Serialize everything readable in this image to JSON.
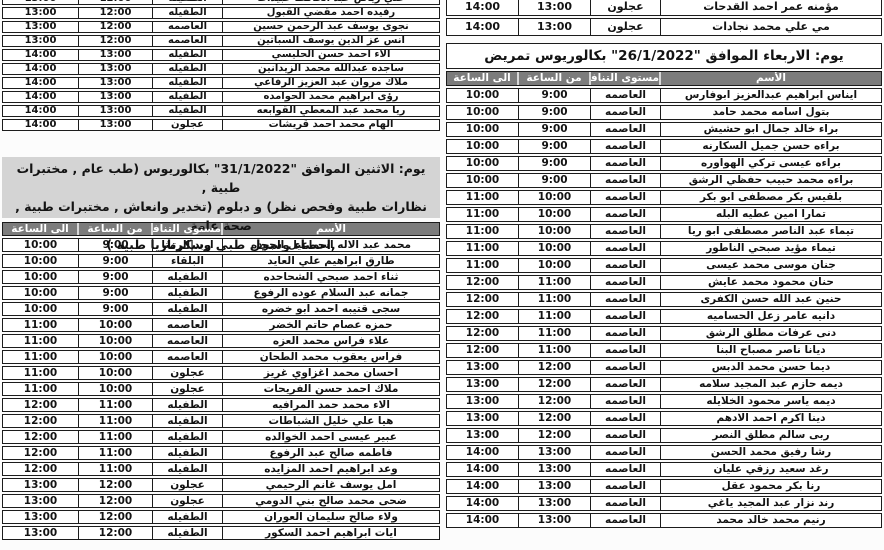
{
  "colors": {
    "page_bg": "#fcfcfc",
    "header_bar_bg": "#7c7c7c",
    "header_bar_text": "#ffffff",
    "day_banner_bg": "#d4d4d4",
    "border": "#1c1c1c",
    "text": "#131313"
  },
  "columns": {
    "name": "الأسم",
    "level": "مستوى التنافس",
    "from": "من الساعة",
    "to": "الى الساعة"
  },
  "left": {
    "top_table_rows": [
      {
        "to": "13:00",
        "from": "12:00",
        "level": "الطفيله",
        "name": "علي رياض عبد الحافظ عبيدات"
      },
      {
        "to": "13:00",
        "from": "12:00",
        "level": "الطفيله",
        "name": "رفيده  احمد مقضي القبول"
      },
      {
        "to": "13:00",
        "from": "12:00",
        "level": "العاصمه",
        "name": "نجوى يوسف عبد الرحمن حسين"
      },
      {
        "to": "13:00",
        "from": "12:00",
        "level": "العاصمه",
        "name": "انس عز الدين يوسف السباتين"
      },
      {
        "to": "14:00",
        "from": "13:00",
        "level": "الطفيله",
        "name": "الاء احمد حسن الحليسي"
      },
      {
        "to": "14:00",
        "from": "13:00",
        "level": "الطفيله",
        "name": "ساجده عبدالله محمد الزيدانين"
      },
      {
        "to": "14:00",
        "from": "13:00",
        "level": "الطفيله",
        "name": "ملاك مروان عبد العزيز الرفاعي"
      },
      {
        "to": "14:00",
        "from": "13:00",
        "level": "الطفيله",
        "name": "رؤى ابراهيم محمد الحوامده"
      },
      {
        "to": "14:00",
        "from": "13:00",
        "level": "الطفيله",
        "name": "ريا محمد عبد المعطي القوابعه"
      },
      {
        "to": "14:00",
        "from": "13:00",
        "level": "عجلون",
        "name": "الهام محمد احمد قريشات"
      }
    ],
    "day_banner_lines": [
      "يوم: الاثنين الموافق \"31/1/2022\"  بكالوريوس (طب عام , مختبرات طبية ,",
      "نظارات طبية وفحص نظر) و دبلوم (تخدير وانعاش , مختبرات طبية , صحة عامة",
      ",احصاء وسجل طبي وسكرتاريا طبية  )"
    ],
    "main_table_rows": [
      {
        "to": "10:00",
        "from": "9:00",
        "level": "اربد|الرمثا",
        "name": "محمد عبد الاله اسماعيل الجوده"
      },
      {
        "to": "10:00",
        "from": "9:00",
        "level": "البلقاء",
        "name": "طارق ابراهيم علي العايد"
      },
      {
        "to": "10:00",
        "from": "9:00",
        "level": "الطفيله",
        "name": "ثناء احمد صبحي الشحاحده"
      },
      {
        "to": "10:00",
        "from": "9:00",
        "level": "الطفيله",
        "name": "جمانه عبد السلام عوده الرفوع"
      },
      {
        "to": "10:00",
        "from": "9:00",
        "level": "الطفيله",
        "name": "سجى قتيبه احمد ابو  خضره"
      },
      {
        "to": "11:00",
        "from": "10:00",
        "level": "العاصمه",
        "name": "حمزه عصام حاتم الخضر"
      },
      {
        "to": "11:00",
        "from": "10:00",
        "level": "العاصمه",
        "name": "علاء فراس محمد العزه"
      },
      {
        "to": "11:00",
        "from": "10:00",
        "level": "العاصمه",
        "name": "فراس يعقوب محمد الطحان"
      },
      {
        "to": "11:00",
        "from": "10:00",
        "level": "عجلون",
        "name": "احسان محمد اغزاوي غريز"
      },
      {
        "to": "11:00",
        "from": "10:00",
        "level": "عجلون",
        "name": "ملاك احمد حسن الفريحات"
      },
      {
        "to": "12:00",
        "from": "11:00",
        "level": "الطفيله",
        "name": "الاء محمد حمد المرافيه"
      },
      {
        "to": "12:00",
        "from": "11:00",
        "level": "الطفيله",
        "name": "هيا علي خليل الشباطات"
      },
      {
        "to": "12:00",
        "from": "11:00",
        "level": "الطفيله",
        "name": "عبير عيسى احمد الخوالده"
      },
      {
        "to": "12:00",
        "from": "11:00",
        "level": "الطفيله",
        "name": "فاطمه صالح عبد الرفوع"
      },
      {
        "to": "12:00",
        "from": "11:00",
        "level": "الطفيله",
        "name": "وعد ابراهيم احمد المزايده"
      },
      {
        "to": "13:00",
        "from": "12:00",
        "level": "عجلون",
        "name": "امل يوسف غانم الرحيمي"
      },
      {
        "to": "13:00",
        "from": "12:00",
        "level": "عجلون",
        "name": "ضحى محمد صالح بني الدومي"
      },
      {
        "to": "13:00",
        "from": "12:00",
        "level": "الطفيله",
        "name": "ولاء صالح سليمان العوران"
      },
      {
        "to": "13:00",
        "from": "12:00",
        "level": "الطفيله",
        "name": "ايات ابراهيم احمد السكور"
      }
    ]
  },
  "right": {
    "top_table_rows": [
      {
        "to": "14:00",
        "from": "13:00",
        "level": "عجلون",
        "name": "مؤمنه عمر احمد القدحات"
      },
      {
        "to": "14:00",
        "from": "13:00",
        "level": "عجلون",
        "name": "مي علي محمد نجادات"
      }
    ],
    "day_banner": "يوم: الاربعاء الموافق \"26/1/2022\" بكالوريوس تمريض",
    "main_table_rows": [
      {
        "to": "10:00",
        "from": "9:00",
        "level": "العاصمه",
        "name": "ايناس ابراهيم عبدالعزيز ابوفارس"
      },
      {
        "to": "10:00",
        "from": "9:00",
        "level": "العاصمه",
        "name": "بتول اسامه محمد حامد"
      },
      {
        "to": "10:00",
        "from": "9:00",
        "level": "العاصمه",
        "name": "براء خالد جمال ابو حشيش"
      },
      {
        "to": "10:00",
        "from": "9:00",
        "level": "العاصمه",
        "name": "براءه حسن جميل السكارنه"
      },
      {
        "to": "10:00",
        "from": "9:00",
        "level": "العاصمه",
        "name": "براءه عيسى تركي الهواوره"
      },
      {
        "to": "10:00",
        "from": "9:00",
        "level": "العاصمه",
        "name": "براءه محمد حبيب حفظي الرشق"
      },
      {
        "to": "11:00",
        "from": "10:00",
        "level": "العاصمه",
        "name": "بلقيس بكر مصطفى ابو بكر"
      },
      {
        "to": "11:00",
        "from": "10:00",
        "level": "العاصمه",
        "name": "تمارا امين عطيه البله"
      },
      {
        "to": "11:00",
        "from": "10:00",
        "level": "العاصمه",
        "name": "تيماء عبد الناصر مصطفى ابو ريا"
      },
      {
        "to": "11:00",
        "from": "10:00",
        "level": "العاصمه",
        "name": "تيماء مؤيد صبحي الناطور"
      },
      {
        "to": "11:00",
        "from": "10:00",
        "level": "العاصمه",
        "name": "جنان موسى محمد عيسى"
      },
      {
        "to": "12:00",
        "from": "11:00",
        "level": "العاصمه",
        "name": "حنان محمود محمد عايش"
      },
      {
        "to": "12:00",
        "from": "11:00",
        "level": "العاصمه",
        "name": "حنين عبد الله حسن الكفرى"
      },
      {
        "to": "12:00",
        "from": "11:00",
        "level": "العاصمه",
        "name": "دانيه عامر زعل الحساميه"
      },
      {
        "to": "12:00",
        "from": "11:00",
        "level": "العاصمه",
        "name": "دنى عرفات مطلق الرشق"
      },
      {
        "to": "12:00",
        "from": "11:00",
        "level": "العاصمه",
        "name": "ديانا ناصر مصباح البنا"
      },
      {
        "to": "13:00",
        "from": "12:00",
        "level": "العاصمه",
        "name": "ديما حسن محمد الدبس"
      },
      {
        "to": "13:00",
        "from": "12:00",
        "level": "العاصمه",
        "name": "ديمه حازم عبد المجيد سلامه"
      },
      {
        "to": "13:00",
        "from": "12:00",
        "level": "العاصمه",
        "name": "ديمه ياسر محمود الخلايله"
      },
      {
        "to": "13:00",
        "from": "12:00",
        "level": "العاصمه",
        "name": "دينا اكرم احمد الادهم"
      },
      {
        "to": "13:00",
        "from": "12:00",
        "level": "العاصمه",
        "name": "ربى سالم مطلق النصر"
      },
      {
        "to": "14:00",
        "from": "13:00",
        "level": "العاصمه",
        "name": "رشا رفيق محمد الحسن"
      },
      {
        "to": "14:00",
        "from": "13:00",
        "level": "العاصمه",
        "name": "رغد سعيد رزقي عليان"
      },
      {
        "to": "14:00",
        "from": "13:00",
        "level": "العاصمه",
        "name": "رنا بكر محمود عقل"
      },
      {
        "to": "14:00",
        "from": "13:00",
        "level": "العاصمه",
        "name": "رند نزار عبد المجيد ياغي"
      },
      {
        "to": "14:00",
        "from": "13:00",
        "level": "العاصمه",
        "name": "رنيم محمد خالد محمد"
      }
    ]
  }
}
